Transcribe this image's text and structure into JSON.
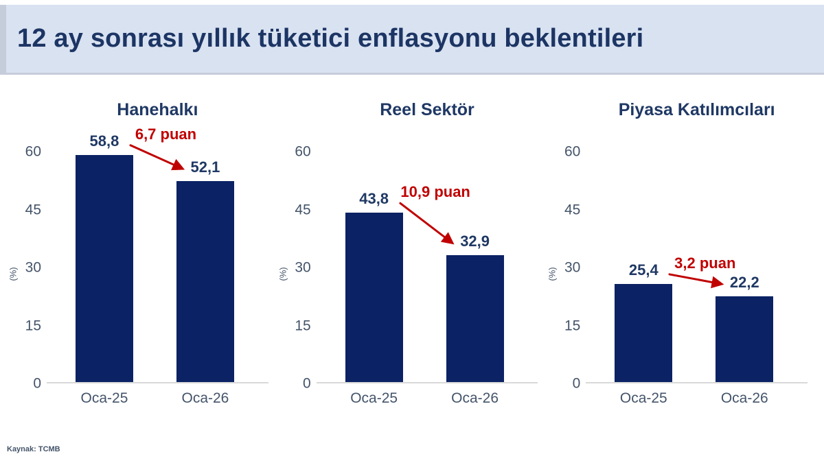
{
  "header": {
    "title": "12 ay sonrası yıllık tüketici enflasyonu beklentileri"
  },
  "footer": {
    "source": "Kaynak: TCMB"
  },
  "colors": {
    "bar_navy": "#0b2264",
    "title_navy": "#1f3864",
    "axis_text": "#44546a",
    "annotation_red": "#c00000",
    "header_bg": "#d9e2f1",
    "baseline_gray": "#d9d9d9"
  },
  "chart_data": [
    {
      "type": "bar",
      "title": "Hanehalkı",
      "categories": [
        "Oca-25",
        "Oca-26"
      ],
      "values": [
        58.8,
        52.1
      ],
      "value_labels": [
        "58,8",
        "52,1"
      ],
      "delta_label": "6,7 puan",
      "xlabel": "",
      "ylabel": "(%)",
      "yticks": [
        0,
        15,
        30,
        45,
        60
      ],
      "ylim": [
        0,
        60
      ],
      "grid": false,
      "legend": "none"
    },
    {
      "type": "bar",
      "title": "Reel Sektör",
      "categories": [
        "Oca-25",
        "Oca-26"
      ],
      "values": [
        43.8,
        32.9
      ],
      "value_labels": [
        "43,8",
        "32,9"
      ],
      "delta_label": "10,9 puan",
      "xlabel": "",
      "ylabel": "(%)",
      "yticks": [
        0,
        15,
        30,
        45,
        60
      ],
      "ylim": [
        0,
        60
      ],
      "grid": false,
      "legend": "none"
    },
    {
      "type": "bar",
      "title": "Piyasa Katılımcıları",
      "categories": [
        "Oca-25",
        "Oca-26"
      ],
      "values": [
        25.4,
        22.2
      ],
      "value_labels": [
        "25,4",
        "22,2"
      ],
      "delta_label": "3,2 puan",
      "xlabel": "",
      "ylabel": "(%)",
      "yticks": [
        0,
        15,
        30,
        45,
        60
      ],
      "ylim": [
        0,
        60
      ],
      "grid": false,
      "legend": "none"
    }
  ]
}
